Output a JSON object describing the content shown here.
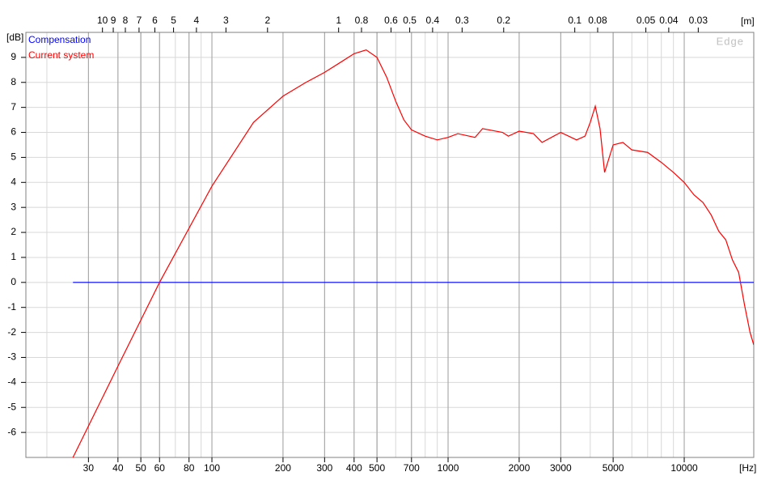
{
  "chart_data": {
    "type": "line",
    "annotation": "Edge",
    "x_unit": "[Hz]",
    "y_unit": "[dB]",
    "x2_unit": "[m]",
    "log_x": true,
    "grid": true,
    "legend": "top-left",
    "xlim": [
      16.3,
      19700
    ],
    "xticks": [
      30,
      40,
      50,
      60,
      80,
      100,
      200,
      300,
      400,
      500,
      700,
      1000,
      2000,
      3000,
      5000,
      10000
    ],
    "x2lim": [
      21.1,
      0.01746
    ],
    "x2ticks": [
      10,
      9,
      8,
      7,
      6,
      5,
      4,
      3,
      2,
      1,
      0.8,
      0.6,
      0.5,
      0.4,
      0.3,
      0.2,
      0.1,
      0.08,
      0.05,
      0.04,
      0.03
    ],
    "ylim": [
      -7,
      10
    ],
    "yticks": [
      -6,
      -5,
      -4,
      -3,
      -2,
      -1,
      0,
      1,
      2,
      3,
      4,
      5,
      6,
      7,
      8,
      9
    ],
    "x": [
      25.8,
      40,
      60,
      100,
      150,
      200,
      250,
      300,
      350,
      400,
      450,
      500,
      550,
      600,
      650,
      700,
      800,
      900,
      1000,
      1100,
      1300,
      1400,
      1700,
      1800,
      2000,
      2300,
      2500,
      2800,
      3000,
      3500,
      3800,
      4000,
      4200,
      4400,
      4600,
      5000,
      5500,
      6000,
      7000,
      8000,
      9000,
      10000,
      11000,
      12000,
      13000,
      14000,
      15000,
      16000,
      17000,
      18000,
      19000,
      19700
    ],
    "series": [
      {
        "name": "Compensation",
        "color": "#0000ff",
        "values": [
          0,
          0,
          0,
          0,
          0,
          0,
          0,
          0,
          0,
          0,
          0,
          0,
          0,
          0,
          0,
          0,
          0,
          0,
          0,
          0,
          0,
          0,
          0,
          0,
          0,
          0,
          0,
          0,
          0,
          0,
          0,
          0,
          0,
          0,
          0,
          0,
          0,
          0,
          0,
          0,
          0,
          0,
          0,
          0,
          0,
          0,
          0,
          0,
          0,
          0,
          0,
          0
        ]
      },
      {
        "name": "Current system",
        "color": "#ff0000",
        "values": [
          -7,
          -3.35,
          0,
          3.85,
          6.4,
          7.45,
          8.0,
          8.4,
          8.8,
          9.15,
          9.3,
          9.0,
          8.2,
          7.25,
          6.5,
          6.1,
          5.85,
          5.7,
          5.8,
          5.95,
          5.8,
          6.15,
          6.0,
          5.85,
          6.05,
          5.95,
          5.6,
          5.85,
          6.0,
          5.7,
          5.85,
          6.4,
          7.05,
          6.15,
          4.4,
          5.5,
          5.6,
          5.3,
          5.2,
          4.8,
          4.4,
          4.0,
          3.5,
          3.2,
          2.7,
          2.05,
          1.7,
          0.9,
          0.4,
          -0.9,
          -2.0,
          -2.5
        ]
      }
    ]
  }
}
